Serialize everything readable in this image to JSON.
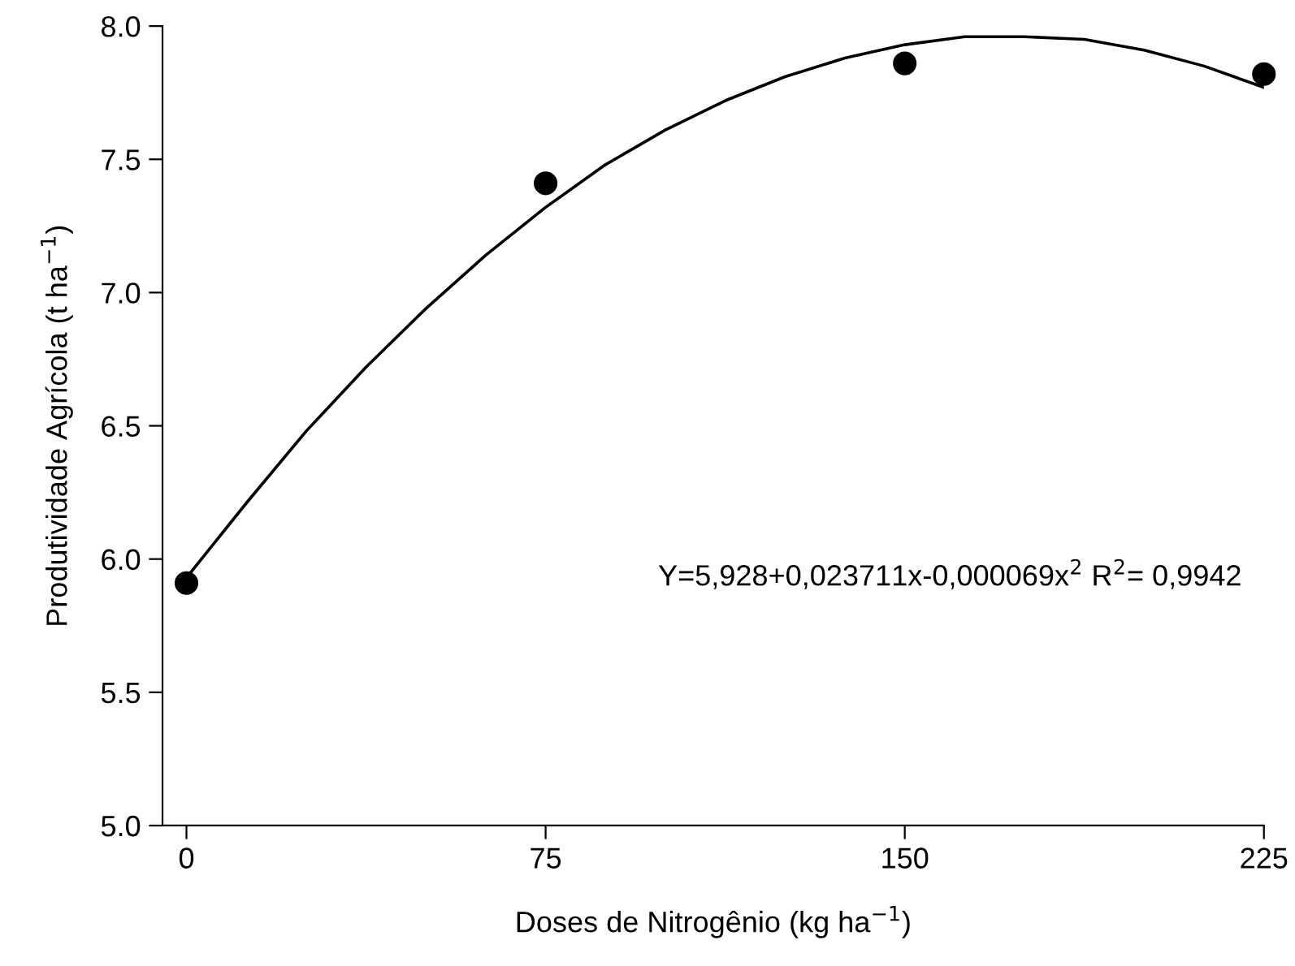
{
  "chart_data": {
    "type": "scatter",
    "xlabel": "Doses de Nitrogênio (kg ha$^{−1}$)",
    "ylabel": "Produtividade Agrícola (t ha$^{−1}$)",
    "x": [
      0,
      75,
      150,
      225
    ],
    "series": [
      {
        "color": "#000000",
        "marker": "circle",
        "values": [
          5.91,
          7.41,
          7.86,
          7.82
        ]
      },
      {
        "type": "line",
        "color": "#000000",
        "marker": "none",
        "line_style": "solid",
        "x": [
          0,
          12.5,
          25,
          37.5,
          50,
          62.5,
          75,
          87.5,
          100,
          112.5,
          125,
          137.5,
          150,
          162.5,
          175,
          187.5,
          200,
          212.5,
          225
        ],
        "values": [
          5.93,
          6.21,
          6.48,
          6.72,
          6.94,
          7.14,
          7.32,
          7.48,
          7.61,
          7.72,
          7.81,
          7.88,
          7.93,
          7.96,
          7.96,
          7.95,
          7.91,
          7.85,
          7.77
        ]
      }
    ],
    "xlim": [
      -5,
      225
    ],
    "xticks": [
      0,
      75,
      150,
      225
    ],
    "ylim": [
      5.0,
      8.0
    ],
    "yticks": [
      {
        "value": 5.0,
        "label": "5.0"
      },
      {
        "value": 5.5,
        "label": "5.5"
      },
      {
        "value": 6.0,
        "label": "6.0"
      },
      {
        "value": 6.5,
        "label": "6.5"
      },
      {
        "value": 7.0,
        "label": "7.0"
      },
      {
        "value": 7.5,
        "label": "7.5"
      },
      {
        "value": 8.0,
        "label": "8.0"
      }
    ],
    "grid": false,
    "legend": false,
    "annotations": [
      "Y=5,928+0,023711x-0,000069x$^{2}$ R$^{2}$= 0,9942"
    ]
  }
}
